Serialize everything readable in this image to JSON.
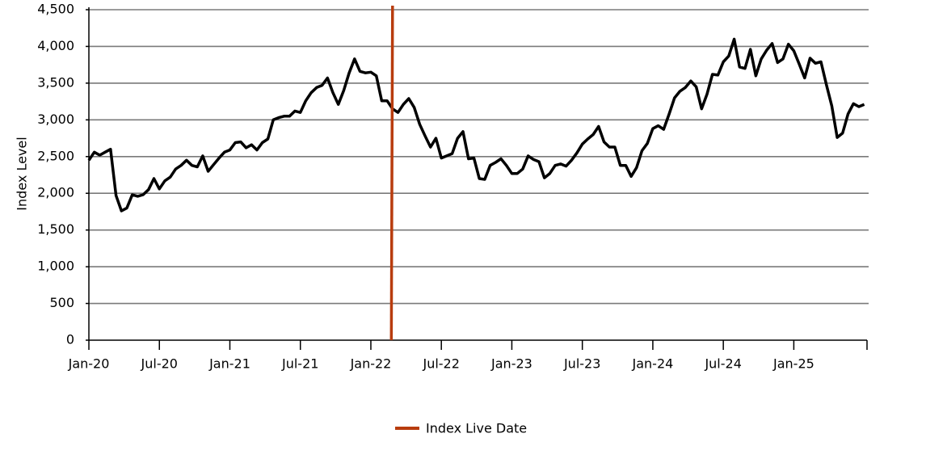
{
  "chart_data": {
    "type": "line",
    "y_label": "Index Level",
    "xlim": [
      0,
      287
    ],
    "xticks": [
      {
        "value": 0,
        "label": "Jan-20"
      },
      {
        "value": 26,
        "label": "Jul-20"
      },
      {
        "value": 52,
        "label": "Jan-21"
      },
      {
        "value": 78,
        "label": "Jul-21"
      },
      {
        "value": 104,
        "label": "Jan-22"
      },
      {
        "value": 130,
        "label": "Jul-22"
      },
      {
        "value": 156,
        "label": "Jan-23"
      },
      {
        "value": 182,
        "label": "Jul-23"
      },
      {
        "value": 208,
        "label": "Jan-24"
      },
      {
        "value": 234,
        "label": "Jul-24"
      },
      {
        "value": 260,
        "label": "Jan-25"
      }
    ],
    "ylim": [
      0,
      4500
    ],
    "yticks": [
      0,
      500,
      {
        "value": 1000,
        "label": "1,000"
      },
      {
        "value": 1500,
        "label": "1,500"
      },
      {
        "value": 2000,
        "label": "2,000"
      },
      {
        "value": 2500,
        "label": "2,500"
      },
      {
        "value": 3000,
        "label": "3,000"
      },
      {
        "value": 3500,
        "label": "3,500"
      },
      {
        "value": 4000,
        "label": "4,000"
      },
      {
        "value": 4500,
        "label": "4,500"
      }
    ],
    "grid": true,
    "x": [
      0,
      2,
      4,
      6,
      8,
      10,
      12,
      14,
      16,
      18,
      20,
      22,
      24,
      26,
      28,
      30,
      32,
      34,
      36,
      38,
      40,
      42,
      44,
      46,
      48,
      50,
      52,
      54,
      56,
      58,
      60,
      62,
      64,
      66,
      68,
      70,
      72,
      74,
      76,
      78,
      80,
      82,
      84,
      86,
      88,
      90,
      92,
      94,
      96,
      98,
      100,
      102,
      104,
      106,
      108,
      110,
      112,
      114,
      116,
      118,
      120,
      122,
      124,
      126,
      128,
      130,
      132,
      134,
      136,
      138,
      140,
      142,
      144,
      146,
      148,
      150,
      152,
      154,
      156,
      158,
      160,
      162,
      164,
      166,
      168,
      170,
      172,
      174,
      176,
      178,
      180,
      182,
      184,
      186,
      188,
      190,
      192,
      194,
      196,
      198,
      200,
      202,
      204,
      206,
      208,
      210,
      212,
      214,
      216,
      218,
      220,
      222,
      224,
      226,
      228,
      230,
      232,
      234,
      236,
      238,
      240,
      242,
      244,
      246,
      248,
      250,
      252,
      254,
      256,
      258,
      260,
      262,
      264,
      266,
      268,
      270,
      272,
      274,
      276,
      278,
      280,
      282,
      284,
      286
    ],
    "series": [
      {
        "color": "#000000",
        "values": [
          2450,
          2560,
          2520,
          2560,
          2600,
          1970,
          1760,
          1800,
          1980,
          1960,
          1980,
          2050,
          2200,
          2060,
          2170,
          2220,
          2330,
          2380,
          2450,
          2380,
          2360,
          2510,
          2300,
          2390,
          2480,
          2560,
          2590,
          2690,
          2700,
          2620,
          2660,
          2590,
          2690,
          2740,
          3000,
          3030,
          3050,
          3050,
          3120,
          3100,
          3260,
          3370,
          3440,
          3470,
          3570,
          3370,
          3210,
          3400,
          3640,
          3830,
          3660,
          3640,
          3650,
          3600,
          3260,
          3260,
          3150,
          3100,
          3210,
          3290,
          3170,
          2940,
          2780,
          2630,
          2750,
          2480,
          2510,
          2540,
          2750,
          2840,
          2470,
          2480,
          2200,
          2190,
          2380,
          2420,
          2470,
          2380,
          2270,
          2270,
          2330,
          2510,
          2460,
          2430,
          2210,
          2270,
          2380,
          2400,
          2370,
          2450,
          2550,
          2670,
          2740,
          2800,
          2910,
          2700,
          2630,
          2630,
          2380,
          2380,
          2230,
          2350,
          2580,
          2680,
          2880,
          2920,
          2870,
          3080,
          3300,
          3390,
          3440,
          3530,
          3450,
          3150,
          3350,
          3620,
          3610,
          3790,
          3870,
          4100,
          3720,
          3700,
          3960,
          3600,
          3830,
          3950,
          4040,
          3780,
          3830,
          4030,
          3940,
          3760,
          3570,
          3840,
          3770,
          3790,
          3480,
          3190,
          2760,
          2820,
          3080,
          3220,
          3180,
          3210
        ]
      }
    ],
    "vline": {
      "name": "Index Live Date",
      "x": 112,
      "color": "#b83c0e"
    }
  }
}
